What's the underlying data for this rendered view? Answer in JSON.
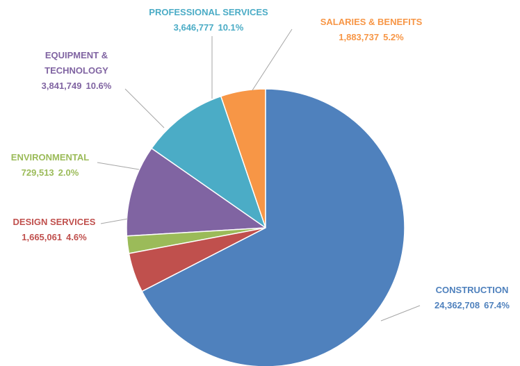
{
  "chart_data": {
    "type": "pie",
    "categories": [
      "CONSTRUCTION",
      "DESIGN SERVICES",
      "ENVIRONMENTAL",
      "EQUIPMENT & TECHNOLOGY",
      "PROFESSIONAL SERVICES",
      "SALARIES & BENEFITS"
    ],
    "values": [
      24362708,
      1665061,
      729513,
      3841749,
      3646777,
      1883737
    ],
    "value_labels": [
      "24,362,708",
      "1,665,061",
      "729,513",
      "3,841,749",
      "3,646,777",
      "1,883,737"
    ],
    "percent_labels": [
      "67.4%",
      "4.6%",
      "2.0%",
      "10.6%",
      "10.1%",
      "5.2%"
    ],
    "colors": [
      "#4f81bd",
      "#c0504d",
      "#9bbb59",
      "#8064a2",
      "#4bacc6",
      "#f79646"
    ]
  }
}
